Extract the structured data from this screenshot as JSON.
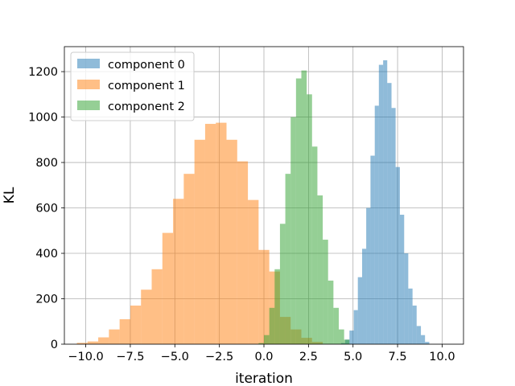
{
  "chart_data": {
    "type": "bar",
    "subtype": "overlaid-histogram",
    "title": "",
    "xlabel": "iteration",
    "ylabel": "KL",
    "xlim": [
      -11.2,
      11.2
    ],
    "ylim": [
      0,
      1310
    ],
    "grid": true,
    "legend_position": "top-left",
    "x_ticks": [
      -10.0,
      -7.5,
      -5.0,
      -2.5,
      0.0,
      2.5,
      5.0,
      7.5,
      10.0
    ],
    "x_tick_labels": [
      "−10.0",
      "−7.5",
      "−5.0",
      "−2.5",
      "0.0",
      "2.5",
      "5.0",
      "7.5",
      "10.0"
    ],
    "y_ticks": [
      0,
      200,
      400,
      600,
      800,
      1000,
      1200
    ],
    "y_tick_labels": [
      "0",
      "200",
      "400",
      "600",
      "800",
      "1000",
      "1200"
    ],
    "series": [
      {
        "name": "component 0",
        "color": "#1f77b4",
        "alpha": 0.5,
        "bins": [
          [
            4.33,
            4.56,
            5
          ],
          [
            4.56,
            4.8,
            20
          ],
          [
            4.8,
            5.04,
            60
          ],
          [
            5.04,
            5.27,
            150
          ],
          [
            5.27,
            5.51,
            295
          ],
          [
            5.51,
            5.74,
            420
          ],
          [
            5.74,
            5.98,
            600
          ],
          [
            5.98,
            6.22,
            830
          ],
          [
            6.22,
            6.45,
            1050
          ],
          [
            6.45,
            6.69,
            1230
          ],
          [
            6.69,
            6.92,
            1250
          ],
          [
            6.92,
            7.16,
            1150
          ],
          [
            7.16,
            7.39,
            1040
          ],
          [
            7.39,
            7.63,
            780
          ],
          [
            7.63,
            7.87,
            570
          ],
          [
            7.87,
            8.1,
            400
          ],
          [
            8.1,
            8.34,
            245
          ],
          [
            8.34,
            8.57,
            170
          ],
          [
            8.57,
            8.81,
            80
          ],
          [
            8.81,
            9.04,
            40
          ],
          [
            9.04,
            9.28,
            10
          ]
        ]
      },
      {
        "name": "component 1",
        "color": "#ff7f0e",
        "alpha": 0.5,
        "bins": [
          [
            -10.5,
            -9.9,
            6
          ],
          [
            -9.9,
            -9.3,
            12
          ],
          [
            -9.3,
            -8.7,
            30
          ],
          [
            -8.7,
            -8.1,
            65
          ],
          [
            -8.1,
            -7.5,
            110
          ],
          [
            -7.5,
            -6.9,
            170
          ],
          [
            -6.9,
            -6.3,
            240
          ],
          [
            -6.3,
            -5.7,
            330
          ],
          [
            -5.7,
            -5.1,
            490
          ],
          [
            -5.1,
            -4.5,
            640
          ],
          [
            -4.5,
            -3.9,
            750
          ],
          [
            -3.9,
            -3.3,
            900
          ],
          [
            -3.3,
            -2.7,
            970
          ],
          [
            -2.7,
            -2.1,
            975
          ],
          [
            -2.1,
            -1.5,
            900
          ],
          [
            -1.5,
            -0.9,
            805
          ],
          [
            -0.9,
            -0.3,
            635
          ],
          [
            -0.3,
            0.3,
            415
          ],
          [
            0.3,
            0.9,
            320
          ],
          [
            0.9,
            1.5,
            120
          ],
          [
            1.5,
            2.1,
            65
          ],
          [
            2.1,
            2.7,
            28
          ],
          [
            2.7,
            3.3,
            10
          ]
        ]
      },
      {
        "name": "component 2",
        "color": "#2ca02c",
        "alpha": 0.5,
        "bins": [
          [
            -0.3,
            0.0,
            5
          ],
          [
            0.0,
            0.3,
            40
          ],
          [
            0.3,
            0.6,
            160
          ],
          [
            0.6,
            0.9,
            330
          ],
          [
            0.9,
            1.2,
            530
          ],
          [
            1.2,
            1.5,
            750
          ],
          [
            1.5,
            1.8,
            1000
          ],
          [
            1.8,
            2.1,
            1170
          ],
          [
            2.1,
            2.4,
            1205
          ],
          [
            2.4,
            2.7,
            1100
          ],
          [
            2.7,
            3.0,
            870
          ],
          [
            3.0,
            3.3,
            655
          ],
          [
            3.3,
            3.6,
            460
          ],
          [
            3.6,
            3.9,
            280
          ],
          [
            3.9,
            4.2,
            160
          ],
          [
            4.2,
            4.5,
            65
          ],
          [
            4.5,
            4.8,
            20
          ]
        ]
      }
    ]
  }
}
